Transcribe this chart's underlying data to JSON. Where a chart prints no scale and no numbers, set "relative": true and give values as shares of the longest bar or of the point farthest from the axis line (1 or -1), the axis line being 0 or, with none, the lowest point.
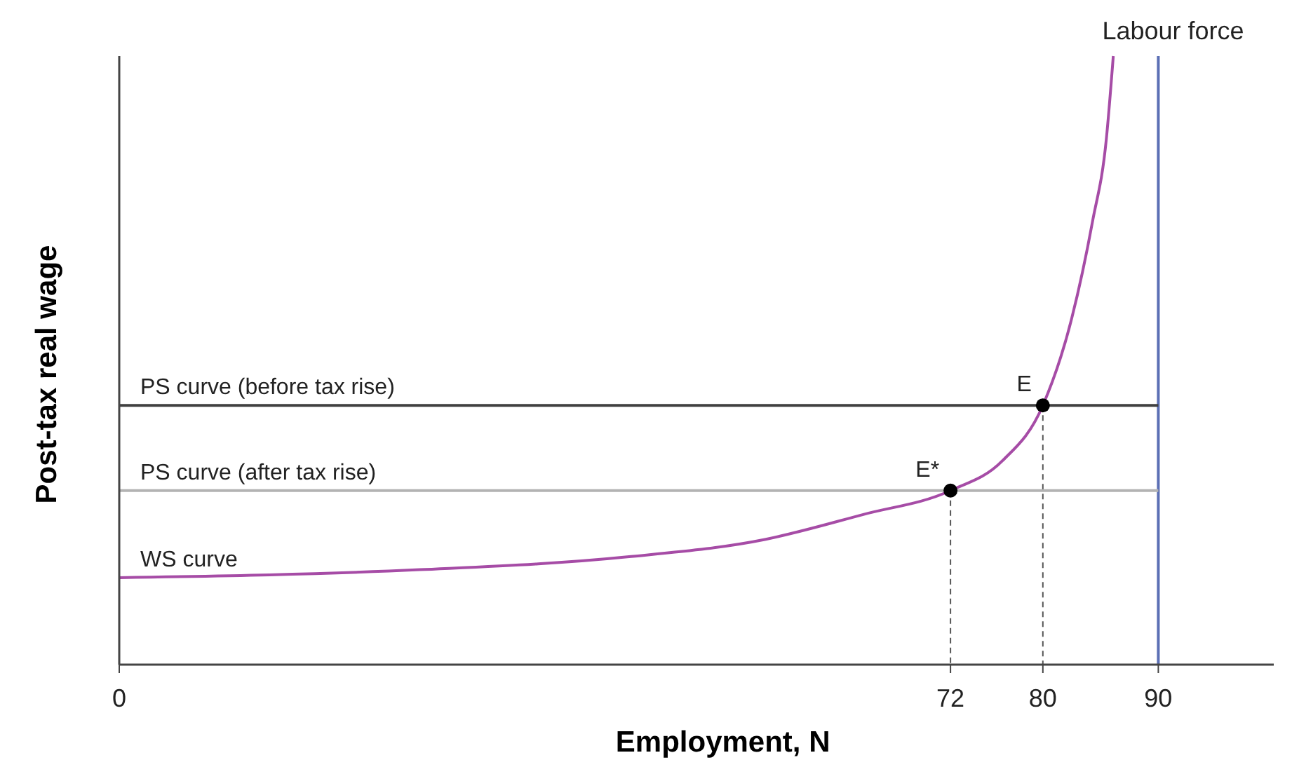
{
  "chart_data": {
    "type": "line",
    "relative": true,
    "xlabel": "Employment, N",
    "ylabel": "Post-tax real wage",
    "xlim": [
      0,
      100
    ],
    "xticks": [
      0,
      72,
      80,
      90
    ],
    "line_style": "solid",
    "series": [
      {
        "name": "WS curve",
        "color": "#a64ca6",
        "x": [
          0,
          26,
          44,
          56,
          64.5,
          72,
          76.5,
          80,
          82.5,
          84.3,
          85.5,
          86.1
        ],
        "values": [
          0.143,
          0.156,
          0.177,
          0.206,
          0.247,
          0.286,
          0.335,
          0.426,
          0.569,
          0.728,
          0.864,
          1.0
        ]
      },
      {
        "name": "PS curve (before tax rise)",
        "color": "#404040",
        "x": [
          0,
          90
        ],
        "values": [
          0.426,
          0.426
        ]
      },
      {
        "name": "PS curve (after tax rise)",
        "color": "#b3b3b3",
        "x": [
          0,
          90
        ],
        "values": [
          0.286,
          0.286
        ]
      },
      {
        "type": "scatter",
        "color": "#000000",
        "marker": "circle",
        "x": [
          72,
          80
        ],
        "values": [
          0.286,
          0.426
        ]
      }
    ],
    "ref_lines": [
      {
        "axis": "x",
        "value": 90,
        "label": "Labour force",
        "color": "#5b6fb5"
      }
    ],
    "annotations": [
      {
        "text": "E*",
        "x": 72,
        "y": 0.286
      },
      {
        "text": "E",
        "x": 80,
        "y": 0.426
      }
    ]
  }
}
